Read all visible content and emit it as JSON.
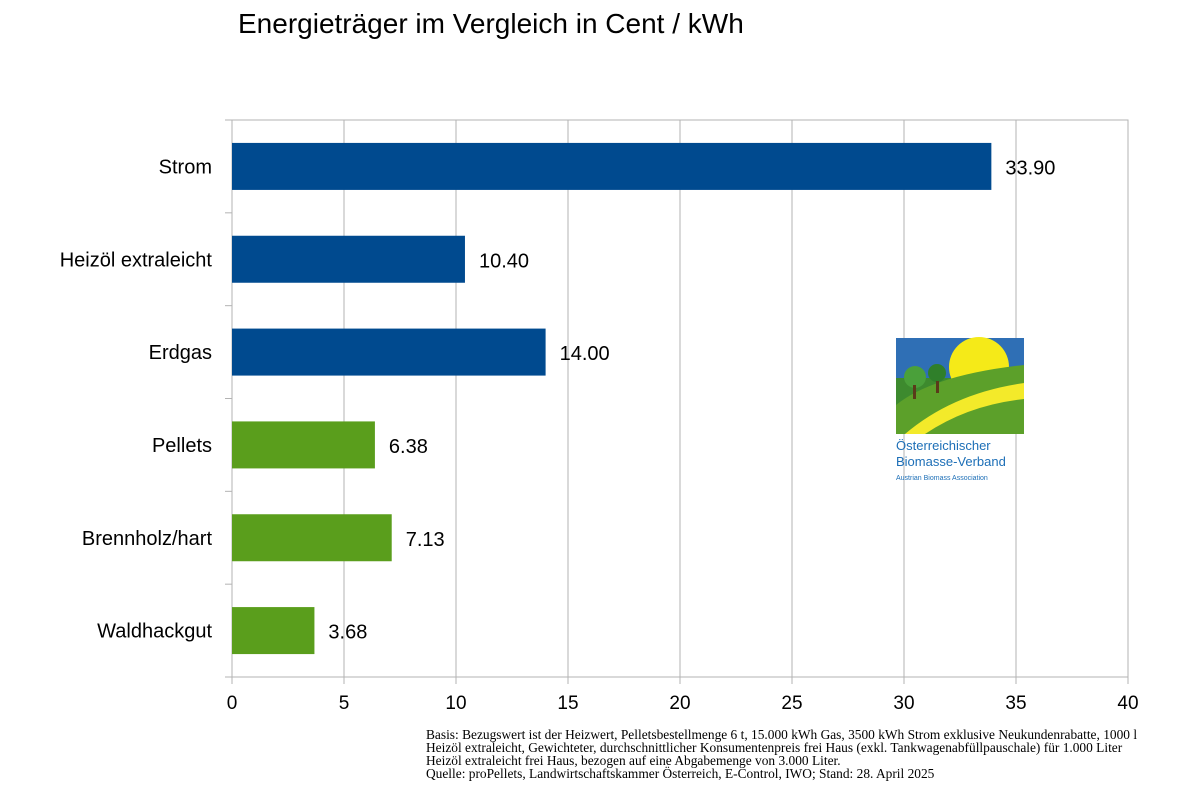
{
  "chart_data": {
    "type": "bar",
    "orientation": "horizontal",
    "title": "Energieträger im Vergleich in Cent / kWh",
    "categories": [
      "Strom",
      "Heizöl extraleicht",
      "Erdgas",
      "Pellets",
      "Brennholz/hart",
      "Waldhackgut"
    ],
    "values": [
      33.9,
      10.4,
      14.0,
      6.38,
      7.13,
      3.68
    ],
    "value_labels": [
      "33.90",
      "10.40",
      "14.00",
      "6.38",
      "7.13",
      "3.68"
    ],
    "bar_colors": [
      "#004a8f",
      "#004a8f",
      "#004a8f",
      "#5a9e1c",
      "#5a9e1c",
      "#5a9e1c"
    ],
    "xlim": [
      0,
      40
    ],
    "xticks": [
      0,
      5,
      10,
      15,
      20,
      25,
      30,
      35,
      40
    ],
    "grid": true,
    "xlabel": "",
    "ylabel": ""
  },
  "footnote": {
    "basis": "Basis: Bezugswert ist der Heizwert, Pelletsbestellmenge 6 t, 15.000 kWh Gas, 3500 kWh Strom exklusive Neukundenrabatte, 1000 l Heizöl extraleicht, Gewichteter, durchschnittlicher Konsumentenpreis frei Haus (exkl. Tankwagenabfüllpauschale) für 1.000 Liter Heizöl extraleicht frei Haus, bezogen auf eine Abgabemenge von 3.000 Liter.",
    "source": "Quelle: proPellets, Landwirtschaftskammer Österreich, E-Control, IWO; Stand: 28. April 2025"
  },
  "logo": {
    "line1": "Österreichischer",
    "line2": "Biomasse-Verband",
    "line3": "Austrian Biomass Association",
    "color": "#1d6fb7"
  }
}
